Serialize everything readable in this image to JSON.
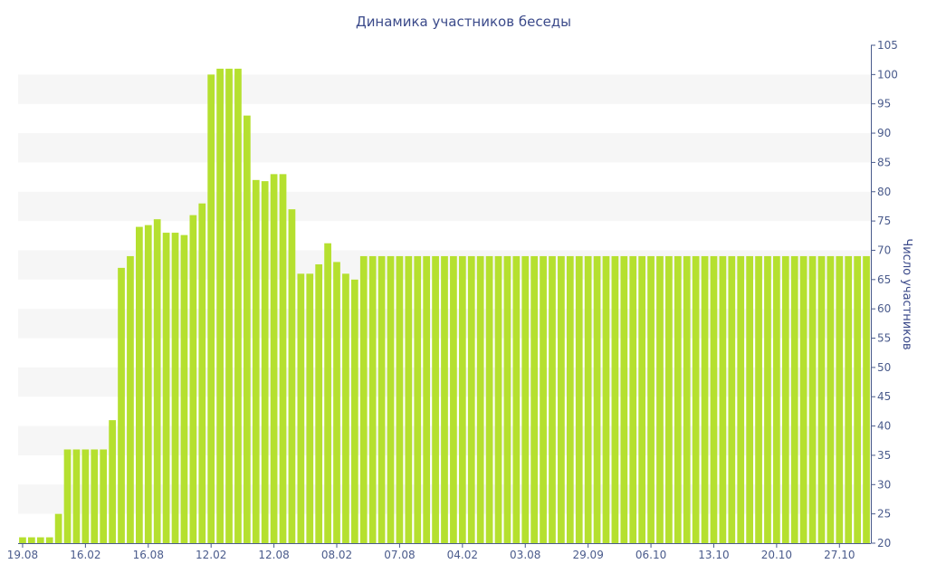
{
  "chart_data": {
    "type": "bar",
    "title": "Динамика участников беседы",
    "xlabel": "",
    "ylabel": "Число участников",
    "ylim": [
      20,
      105
    ],
    "yticks": [
      20,
      25,
      30,
      35,
      40,
      45,
      50,
      55,
      60,
      65,
      70,
      75,
      80,
      85,
      90,
      95,
      100,
      105
    ],
    "x_tick_labels": [
      {
        "index": 0,
        "label": "19.08"
      },
      {
        "index": 7,
        "label": "16.02"
      },
      {
        "index": 14,
        "label": "16.08"
      },
      {
        "index": 21,
        "label": "12.02"
      },
      {
        "index": 28,
        "label": "12.08"
      },
      {
        "index": 35,
        "label": "08.02"
      },
      {
        "index": 42,
        "label": "07.08"
      },
      {
        "index": 49,
        "label": "04.02"
      },
      {
        "index": 56,
        "label": "03.08"
      },
      {
        "index": 63,
        "label": "29.09"
      },
      {
        "index": 70,
        "label": "06.10"
      },
      {
        "index": 77,
        "label": "13.10"
      },
      {
        "index": 84,
        "label": "20.10"
      },
      {
        "index": 91,
        "label": "27.10"
      }
    ],
    "grid": "horizontal alternating bands",
    "legend": "none",
    "colors": {
      "bar": "#b5e02f",
      "axis": "#4a5b8c",
      "title": "#3b4a8a",
      "band": "#f6f6f6"
    },
    "values": [
      21,
      21,
      21,
      21,
      25,
      36,
      36,
      36,
      36,
      36,
      41,
      67,
      69,
      74,
      74.3,
      75.3,
      73,
      73,
      72.6,
      76,
      78,
      100,
      101,
      101,
      101,
      93,
      82,
      81.8,
      83,
      83,
      77,
      66,
      66,
      67.6,
      71.2,
      68,
      66,
      65,
      69,
      69,
      69,
      69,
      69,
      69,
      69,
      69,
      69,
      69,
      69,
      69,
      69,
      69,
      69,
      69,
      69,
      69,
      69,
      69,
      69,
      69,
      69,
      69,
      69,
      69,
      69,
      69,
      69,
      69,
      69,
      69,
      69,
      69,
      69,
      69,
      69,
      69,
      69,
      69,
      69,
      69,
      69,
      69,
      69,
      69,
      69,
      69,
      69,
      69,
      69,
      69,
      69,
      69,
      69,
      69,
      69
    ]
  }
}
